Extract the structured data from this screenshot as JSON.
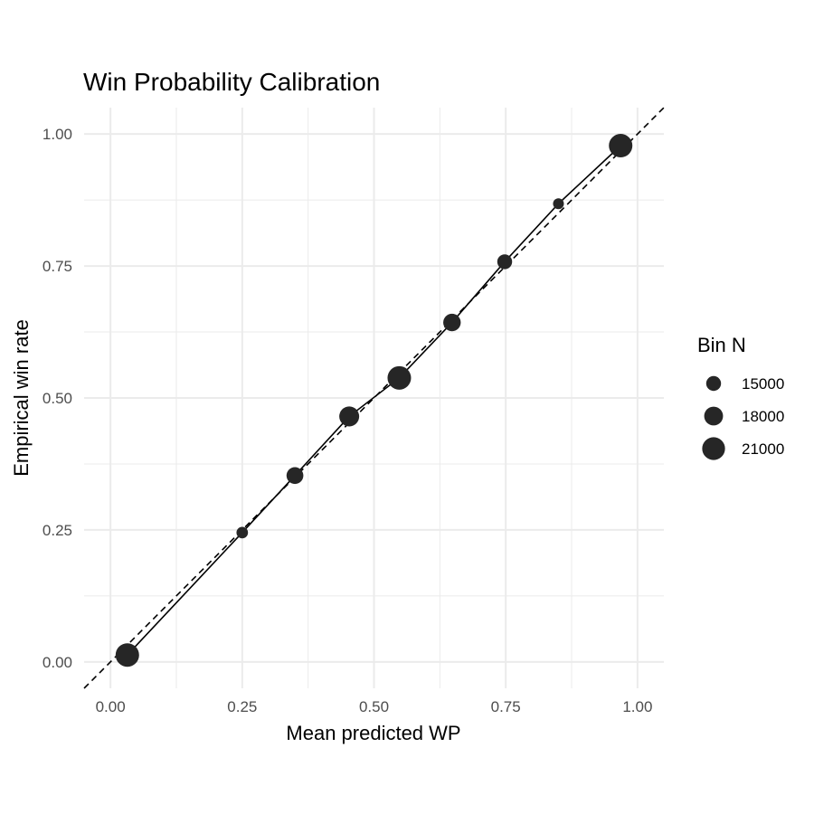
{
  "chart_data": {
    "type": "scatter",
    "title": "Win Probability Calibration",
    "xlabel": "Mean predicted WP",
    "ylabel": "Empirical win rate",
    "xlim": [
      -0.05,
      1.05
    ],
    "ylim": [
      -0.05,
      1.05
    ],
    "x_ticks": [
      0.0,
      0.25,
      0.5,
      0.75,
      1.0
    ],
    "x_tick_labels": [
      "0.00",
      "0.25",
      "0.50",
      "0.75",
      "1.00"
    ],
    "y_ticks": [
      0.0,
      0.25,
      0.5,
      0.75,
      1.0
    ],
    "y_tick_labels": [
      "0.00",
      "0.25",
      "0.50",
      "0.75",
      "1.00"
    ],
    "grid": true,
    "reference_line": {
      "slope": 1,
      "intercept": 0,
      "style": "dashed"
    },
    "series": [
      {
        "points": [
          {
            "x": 0.032,
            "y": 0.013,
            "n": 21500
          },
          {
            "x": 0.25,
            "y": 0.245,
            "n": 12500
          },
          {
            "x": 0.35,
            "y": 0.353,
            "n": 16500
          },
          {
            "x": 0.453,
            "y": 0.465,
            "n": 18800
          },
          {
            "x": 0.548,
            "y": 0.538,
            "n": 21500
          },
          {
            "x": 0.648,
            "y": 0.643,
            "n": 17000
          },
          {
            "x": 0.748,
            "y": 0.758,
            "n": 15000
          },
          {
            "x": 0.85,
            "y": 0.868,
            "n": 12000
          },
          {
            "x": 0.968,
            "y": 0.978,
            "n": 21500
          }
        ]
      }
    ],
    "legend": {
      "title": "Bin N",
      "position": "right",
      "items": [
        {
          "label": "15000",
          "n": 15000
        },
        {
          "label": "18000",
          "n": 18000
        },
        {
          "label": "21000",
          "n": 21000
        }
      ]
    },
    "colors": {
      "point": "#262626",
      "line": "#000000",
      "grid": "#ebebeb"
    }
  }
}
